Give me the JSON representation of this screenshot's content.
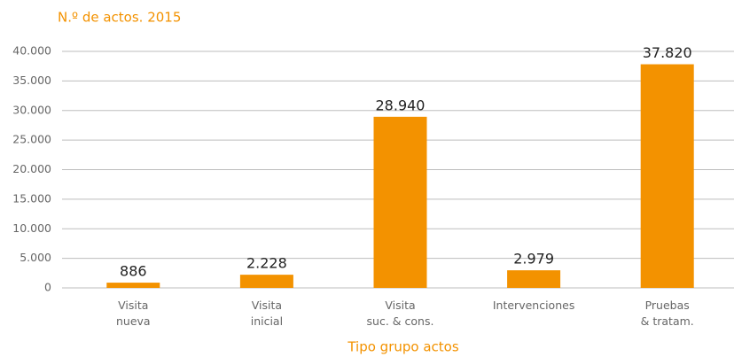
{
  "chart_data": {
    "type": "bar",
    "title": "N.º de actos. 2015",
    "x_label": "Tipo grupo actos",
    "categories": [
      [
        "Visita",
        "nueva"
      ],
      [
        "Visita",
        "inicial"
      ],
      [
        "Visita",
        "suc. & cons."
      ],
      [
        "Intervenciones"
      ],
      [
        "Pruebas",
        "& tratam."
      ]
    ],
    "values": [
      886,
      2228,
      28940,
      2979,
      37820
    ],
    "value_labels": [
      "886",
      "2.228",
      "28.940",
      "2.979",
      "37.820"
    ],
    "color": "#f39200",
    "ylim": [
      0,
      40000
    ],
    "yticks": [
      {
        "value": 0,
        "label": "0"
      },
      {
        "value": 5000,
        "label": "5.000"
      },
      {
        "value": 10000,
        "label": "10.000"
      },
      {
        "value": 15000,
        "label": "15.000"
      },
      {
        "value": 20000,
        "label": "20.000"
      },
      {
        "value": 25000,
        "label": "25.000"
      },
      {
        "value": 30000,
        "label": "30.000"
      },
      {
        "value": 35000,
        "label": "35.000"
      },
      {
        "value": 40000,
        "label": "40.000"
      }
    ],
    "grid": true
  }
}
